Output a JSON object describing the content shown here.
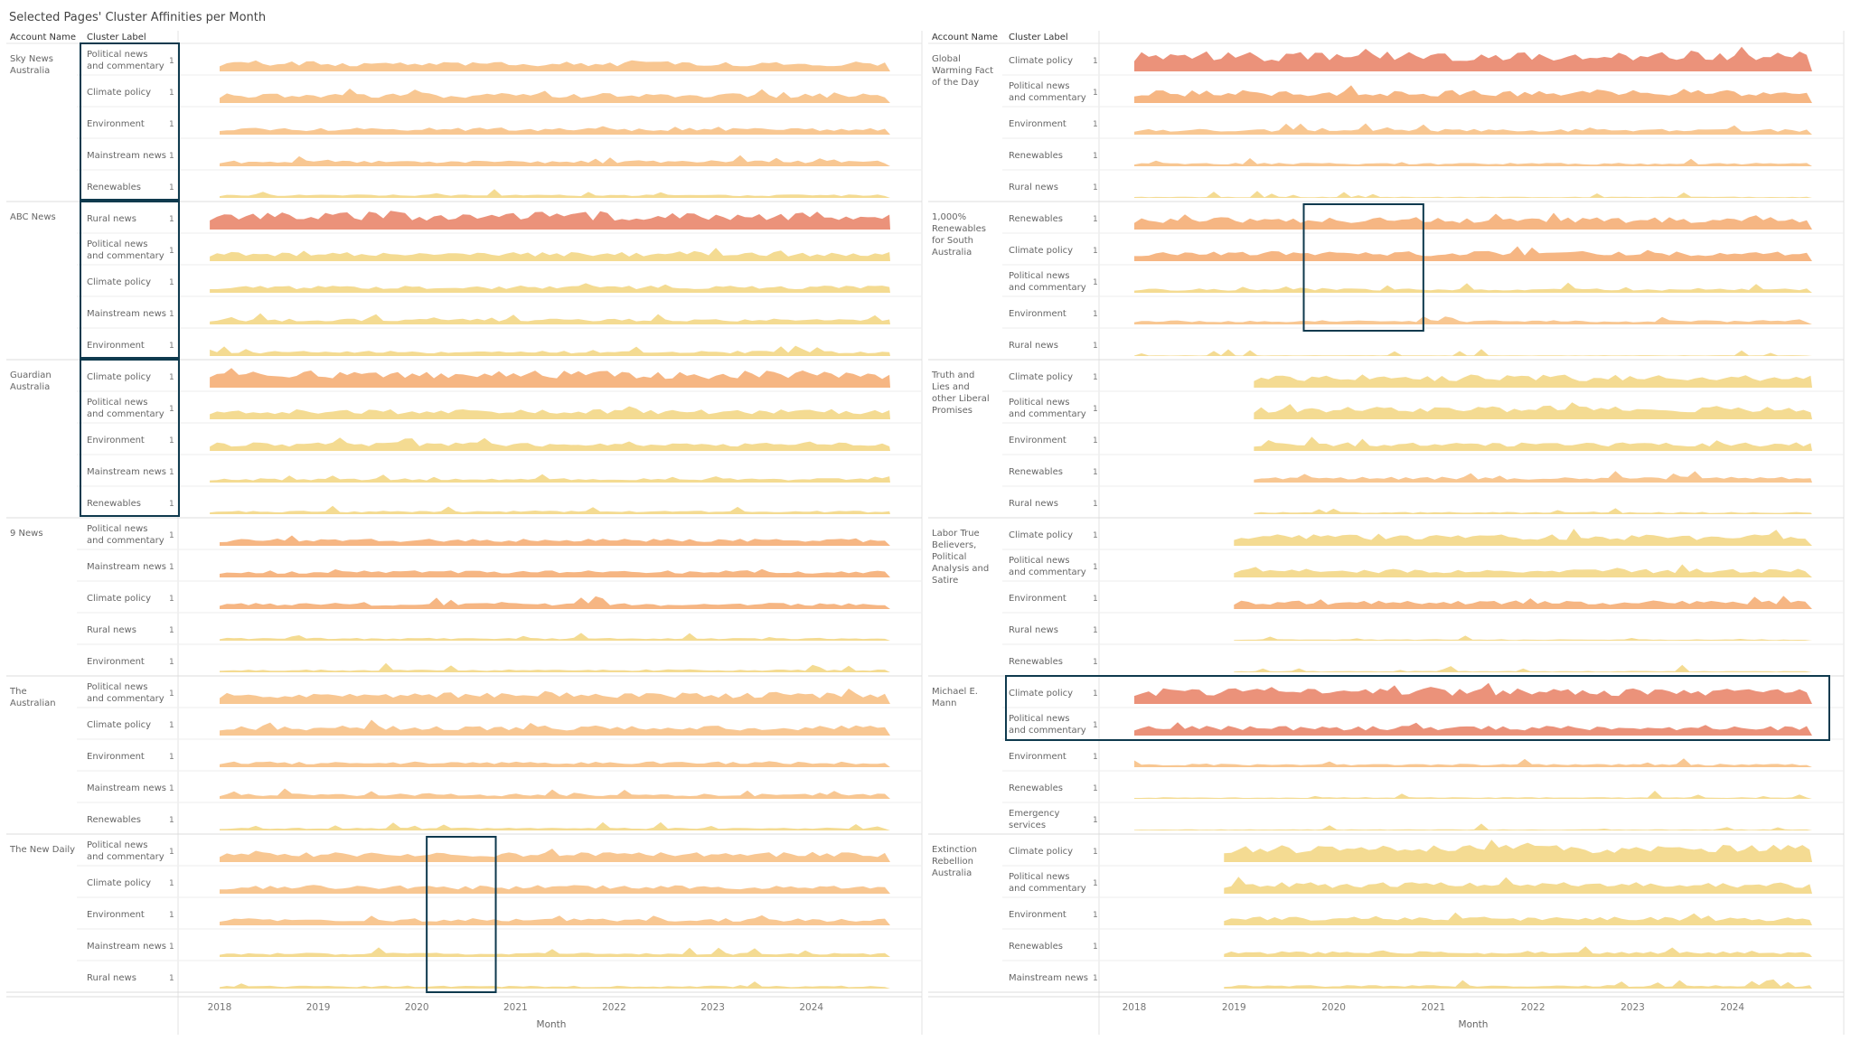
{
  "title": "Selected Pages' Cluster Affinities per Month",
  "header": {
    "account": "Account Name",
    "cluster": "Cluster Label"
  },
  "colors": {
    "red": "#ea8c73",
    "orange": "#f6b27c",
    "peach": "#f8c48c",
    "yellow": "#f3d98c",
    "frame": "#0f3a4e"
  },
  "chart_data": [
    {
      "type": "area",
      "x_label": "Month",
      "x_ticks": [
        "2018",
        "2019",
        "2020",
        "2021",
        "2022",
        "2023",
        "2024"
      ],
      "x_range": [
        2017.6,
        2024.8
      ],
      "groups": [
        {
          "account": "Sky News Australia",
          "start": 2018.0,
          "rows": [
            {
              "label": "Political news and commentary",
              "value": "1",
              "level": 0.35,
              "color": "peach"
            },
            {
              "label": "Climate policy",
              "value": "1",
              "level": 0.35,
              "color": "peach"
            },
            {
              "label": "Environment",
              "value": "1",
              "level": 0.25,
              "color": "peach"
            },
            {
              "label": "Mainstream news",
              "value": "1",
              "level": 0.2,
              "color": "peach"
            },
            {
              "label": "Renewables",
              "value": "1",
              "level": 0.12,
              "color": "yellow"
            }
          ]
        },
        {
          "account": "ABC News",
          "start": 2017.9,
          "rows": [
            {
              "label": "Rural news",
              "value": "1",
              "level": 0.62,
              "color": "red"
            },
            {
              "label": "Political news and commentary",
              "value": "1",
              "level": 0.32,
              "color": "yellow"
            },
            {
              "label": "Climate policy",
              "value": "1",
              "level": 0.25,
              "color": "yellow"
            },
            {
              "label": "Mainstream news",
              "value": "1",
              "level": 0.2,
              "color": "yellow"
            },
            {
              "label": "Environment",
              "value": "1",
              "level": 0.18,
              "color": "yellow"
            }
          ]
        },
        {
          "account": "Guardian Australia",
          "start": 2017.9,
          "rows": [
            {
              "label": "Climate policy",
              "value": "1",
              "level": 0.6,
              "color": "orange"
            },
            {
              "label": "Political news and commentary",
              "value": "1",
              "level": 0.35,
              "color": "yellow"
            },
            {
              "label": "Environment",
              "value": "1",
              "level": 0.3,
              "color": "yellow"
            },
            {
              "label": "Mainstream news",
              "value": "1",
              "level": 0.15,
              "color": "yellow"
            },
            {
              "label": "Renewables",
              "value": "1",
              "level": 0.12,
              "color": "yellow"
            }
          ]
        },
        {
          "account": "9 News",
          "start": 2018.0,
          "rows": [
            {
              "label": "Political news and commentary",
              "value": "1",
              "level": 0.25,
              "color": "orange"
            },
            {
              "label": "Mainstream news",
              "value": "1",
              "level": 0.25,
              "color": "orange"
            },
            {
              "label": "Climate policy",
              "value": "1",
              "level": 0.22,
              "color": "orange"
            },
            {
              "label": "Rural news",
              "value": "1",
              "level": 0.1,
              "color": "yellow"
            },
            {
              "label": "Environment",
              "value": "1",
              "level": 0.1,
              "color": "yellow"
            }
          ]
        },
        {
          "account": "The Australian",
          "start": 2018.0,
          "rows": [
            {
              "label": "Political news and commentary",
              "value": "1",
              "level": 0.4,
              "color": "peach"
            },
            {
              "label": "Climate policy",
              "value": "1",
              "level": 0.35,
              "color": "peach"
            },
            {
              "label": "Environment",
              "value": "1",
              "level": 0.2,
              "color": "peach"
            },
            {
              "label": "Mainstream news",
              "value": "1",
              "level": 0.18,
              "color": "peach"
            },
            {
              "label": "Renewables",
              "value": "1",
              "level": 0.1,
              "color": "yellow"
            }
          ]
        },
        {
          "account": "The New Daily",
          "start": 2018.0,
          "rows": [
            {
              "label": "Political news and commentary",
              "value": "1",
              "level": 0.35,
              "color": "peach"
            },
            {
              "label": "Climate policy",
              "value": "1",
              "level": 0.3,
              "color": "peach"
            },
            {
              "label": "Environment",
              "value": "1",
              "level": 0.25,
              "color": "peach"
            },
            {
              "label": "Mainstream news",
              "value": "1",
              "level": 0.15,
              "color": "yellow"
            },
            {
              "label": "Rural news",
              "value": "1",
              "level": 0.1,
              "color": "yellow"
            }
          ]
        }
      ],
      "highlights": [
        {
          "groups": [
            0,
            0
          ],
          "span": "labels"
        },
        {
          "groups": [
            1,
            1
          ],
          "span": "labels"
        },
        {
          "groups": [
            2,
            2
          ],
          "span": "labels"
        },
        {
          "group": 5,
          "x_from": 2020.1,
          "x_to": 2020.8
        }
      ]
    },
    {
      "type": "area",
      "x_label": "Month",
      "x_ticks": [
        "2018",
        "2019",
        "2020",
        "2021",
        "2022",
        "2023",
        "2024"
      ],
      "x_range": [
        2017.6,
        2024.8
      ],
      "groups": [
        {
          "account": "Global Warming Fact of the Day",
          "start": 2018.0,
          "rows": [
            {
              "label": "Climate policy",
              "value": "1",
              "level": 0.7,
              "color": "red"
            },
            {
              "label": "Political news and commentary",
              "value": "1",
              "level": 0.45,
              "color": "orange"
            },
            {
              "label": "Environment",
              "value": "1",
              "level": 0.2,
              "color": "peach"
            },
            {
              "label": "Renewables",
              "value": "1",
              "level": 0.12,
              "color": "peach"
            },
            {
              "label": "Rural news",
              "value": "1",
              "level": 0.04,
              "color": "yellow"
            }
          ]
        },
        {
          "account": "1,000% Renewables for South Australia",
          "start": 2018.0,
          "rows": [
            {
              "label": "Renewables",
              "value": "1",
              "level": 0.45,
              "color": "orange"
            },
            {
              "label": "Climate policy",
              "value": "1",
              "level": 0.35,
              "color": "orange"
            },
            {
              "label": "Political news and commentary",
              "value": "1",
              "level": 0.15,
              "color": "yellow"
            },
            {
              "label": "Environment",
              "value": "1",
              "level": 0.15,
              "color": "peach"
            },
            {
              "label": "Rural news",
              "value": "1",
              "level": 0.03,
              "color": "yellow"
            }
          ]
        },
        {
          "account": "Truth and Lies and other Liberal Promises",
          "start": 2019.2,
          "rows": [
            {
              "label": "Climate policy",
              "value": "1",
              "level": 0.45,
              "color": "yellow"
            },
            {
              "label": "Political news and commentary",
              "value": "1",
              "level": 0.45,
              "color": "yellow"
            },
            {
              "label": "Environment",
              "value": "1",
              "level": 0.3,
              "color": "yellow"
            },
            {
              "label": "Renewables",
              "value": "1",
              "level": 0.2,
              "color": "peach"
            },
            {
              "label": "Rural news",
              "value": "1",
              "level": 0.08,
              "color": "yellow"
            }
          ]
        },
        {
          "account": "Labor True Believers, Political Analysis and Satire",
          "start": 2019.0,
          "rows": [
            {
              "label": "Climate policy",
              "value": "1",
              "level": 0.4,
              "color": "yellow"
            },
            {
              "label": "Political news and commentary",
              "value": "1",
              "level": 0.3,
              "color": "yellow"
            },
            {
              "label": "Environment",
              "value": "1",
              "level": 0.3,
              "color": "orange"
            },
            {
              "label": "Rural news",
              "value": "1",
              "level": 0.05,
              "color": "yellow"
            },
            {
              "label": "Renewables",
              "value": "1",
              "level": 0.05,
              "color": "yellow"
            }
          ]
        },
        {
          "account": "Michael E. Mann",
          "start": 2018.0,
          "rows": [
            {
              "label": "Climate policy",
              "value": "1",
              "level": 0.55,
              "color": "red"
            },
            {
              "label": "Political news and commentary",
              "value": "1",
              "level": 0.35,
              "color": "red"
            },
            {
              "label": "Environment",
              "value": "1",
              "level": 0.12,
              "color": "peach"
            },
            {
              "label": "Renewables",
              "value": "1",
              "level": 0.06,
              "color": "yellow"
            },
            {
              "label": "Emergency services",
              "value": "1",
              "level": 0.04,
              "color": "yellow"
            }
          ]
        },
        {
          "account": "Extinction Rebellion Australia",
          "start": 2018.9,
          "rows": [
            {
              "label": "Climate policy",
              "value": "1",
              "level": 0.6,
              "color": "yellow"
            },
            {
              "label": "Political news and commentary",
              "value": "1",
              "level": 0.4,
              "color": "yellow"
            },
            {
              "label": "Environment",
              "value": "1",
              "level": 0.3,
              "color": "yellow"
            },
            {
              "label": "Renewables",
              "value": "1",
              "level": 0.2,
              "color": "yellow"
            },
            {
              "label": "Mainstream news",
              "value": "1",
              "level": 0.12,
              "color": "yellow"
            }
          ]
        }
      ],
      "highlights": [
        {
          "group": 1,
          "x_from": 2019.7,
          "x_to": 2020.9
        },
        {
          "groups": [
            4,
            4
          ],
          "rows": [
            0,
            1
          ],
          "span": "full"
        }
      ]
    }
  ]
}
